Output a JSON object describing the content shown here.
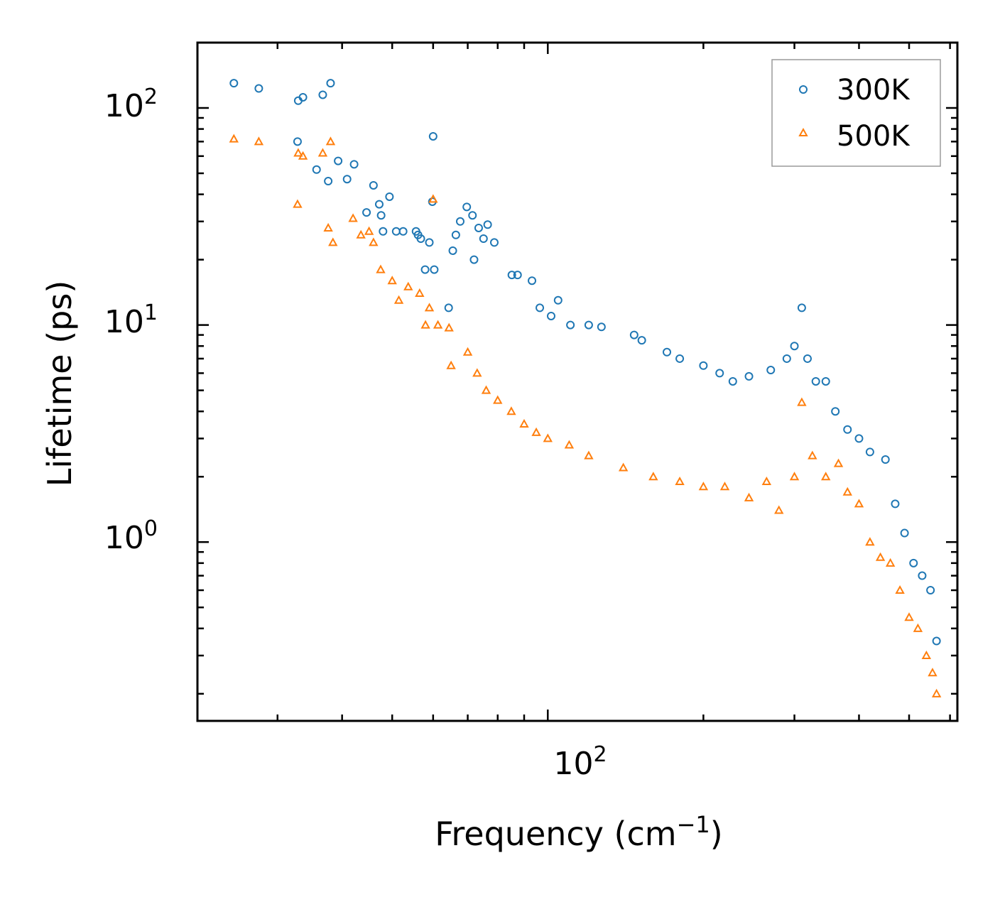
{
  "chart_data": {
    "type": "scatter",
    "xscale": "log",
    "yscale": "log",
    "xlabel": "Frequency (cm",
    "xlabel_sup": "−1",
    "xlabel_close": ")",
    "ylabel": "Lifetime (ps)",
    "xlim": [
      21,
      620
    ],
    "ylim": [
      0.15,
      200
    ],
    "x_tick_labels": [
      {
        "value": 100,
        "base": "10",
        "exp": "2"
      }
    ],
    "y_tick_labels": [
      {
        "value": 1,
        "base": "10",
        "exp": "0"
      },
      {
        "value": 10,
        "base": "10",
        "exp": "1"
      },
      {
        "value": 100,
        "base": "10",
        "exp": "2"
      }
    ],
    "legend_position": "top-right",
    "legend": [
      {
        "name": "300K",
        "marker": "circle",
        "color": "#1f77b4"
      },
      {
        "name": "500K",
        "marker": "triangle",
        "color": "#ff7f0e"
      }
    ],
    "series": [
      {
        "name": "300K",
        "color": "#1f77b4",
        "marker": "circle",
        "x": [
          24.7,
          27.6,
          32.9,
          33.6,
          36.7,
          38.0,
          32.8,
          35.7,
          37.6,
          39.3,
          40.9,
          42.2,
          44.6,
          46.0,
          47.2,
          47.6,
          48.0,
          49.4,
          50.9,
          52.5,
          55.6,
          56.1,
          56.8,
          59.0,
          59.8,
          60.0,
          57.9,
          60.3,
          64.3,
          65.5,
          66.4,
          67.7,
          69.7,
          71.5,
          72.0,
          73.5,
          75.1,
          76.5,
          78.8,
          85.2,
          87.4,
          93.2,
          96.5,
          101.5,
          104.7,
          110.6,
          120.0,
          127.0,
          146.9,
          152.0,
          170.0,
          180.0,
          200.0,
          215.0,
          228.0,
          245.0,
          270.0,
          290.0,
          300.0,
          310.0,
          318.0,
          330.0,
          345.0,
          360.0,
          380.0,
          400.0,
          420.0,
          450.0,
          470.0,
          490.0,
          510.0,
          530.0,
          550.0,
          565.0
        ],
        "y": [
          130,
          123,
          108,
          112,
          115,
          130,
          70,
          52,
          46,
          57,
          47,
          55,
          33,
          44,
          36,
          32,
          27,
          39,
          27,
          27,
          27,
          26,
          25,
          24,
          37,
          74,
          18,
          18,
          12,
          22,
          26,
          30,
          35,
          32,
          20,
          28,
          25,
          29,
          24,
          17,
          17,
          16,
          12,
          11,
          13,
          10,
          10,
          9.8,
          9.0,
          8.5,
          7.5,
          7.0,
          6.5,
          6.0,
          5.5,
          5.8,
          6.2,
          7.0,
          8.0,
          12.0,
          7.0,
          5.5,
          5.5,
          4.0,
          3.3,
          3.0,
          2.6,
          2.4,
          1.5,
          1.1,
          0.8,
          0.7,
          0.6,
          0.35
        ]
      },
      {
        "name": "500K",
        "color": "#ff7f0e",
        "marker": "triangle",
        "x": [
          24.7,
          27.6,
          32.9,
          33.6,
          36.7,
          38.0,
          32.8,
          37.6,
          38.4,
          42.0,
          43.5,
          45.1,
          46.0,
          47.5,
          50.0,
          51.5,
          53.7,
          56.5,
          58.0,
          59.0,
          60.0,
          61.3,
          64.4,
          65.0,
          70.0,
          73.0,
          76.0,
          80.0,
          85.0,
          90.0,
          95.0,
          100.0,
          110.0,
          120.0,
          140.0,
          160.0,
          180.0,
          200.0,
          220.0,
          245.0,
          265.0,
          280.0,
          300.0,
          310.0,
          325.0,
          345.0,
          365.0,
          380.0,
          400.0,
          420.0,
          440.0,
          460.0,
          480.0,
          500.0,
          520.0,
          540.0,
          555.0,
          565.0
        ],
        "y": [
          72,
          70,
          62,
          60,
          62,
          70,
          36,
          28,
          24,
          31,
          26,
          27,
          24,
          18,
          16,
          13,
          15,
          14,
          10,
          12,
          38,
          10,
          9.7,
          6.5,
          7.5,
          6.0,
          5.0,
          4.5,
          4.0,
          3.5,
          3.2,
          3.0,
          2.8,
          2.5,
          2.2,
          2.0,
          1.9,
          1.8,
          1.8,
          1.6,
          1.9,
          1.4,
          2.0,
          4.4,
          2.5,
          2.0,
          2.3,
          1.7,
          1.5,
          1.0,
          0.85,
          0.8,
          0.6,
          0.45,
          0.4,
          0.3,
          0.25,
          0.2
        ]
      }
    ]
  }
}
